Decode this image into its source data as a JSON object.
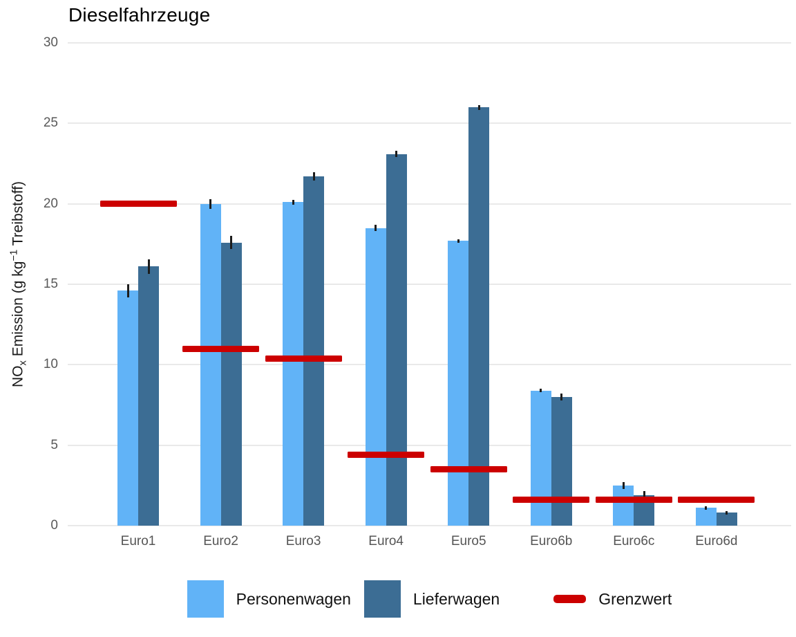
{
  "title": "Dieselfahrzeuge",
  "y_axis": {
    "label_plain": "NOx Emission (g kg−1 Treibstoff)",
    "label_parts": {
      "base1": "NO",
      "sub": "x",
      "base2": " Emission (g kg",
      "sup": "−1",
      "base3": " Treibstoff)"
    }
  },
  "legend": {
    "items": [
      {
        "label": "Personenwagen",
        "color": "#61B3F7",
        "key": "square"
      },
      {
        "label": "Lieferwagen",
        "color": "#3C6D94",
        "key": "square"
      },
      {
        "label": "Grenzwert",
        "color": "#CC0000",
        "key": "line"
      }
    ]
  },
  "colors": {
    "personenwagen": "#61B3F7",
    "lieferwagen": "#3C6D94",
    "grenzwert": "#CC0000",
    "gridline": "#E9E9E9",
    "axis_text": "#595959",
    "error_bar": "#1C1C1C",
    "background": "#FFFFFF"
  },
  "chart_data": {
    "type": "bar",
    "title": "Dieselfahrzeuge",
    "categories": [
      "Euro1",
      "Euro2",
      "Euro3",
      "Euro4",
      "Euro5",
      "Euro6b",
      "Euro6c",
      "Euro6d"
    ],
    "series": [
      {
        "name": "Personenwagen",
        "color": "#61B3F7",
        "values": [
          14.6,
          20.0,
          20.1,
          18.5,
          17.7,
          8.4,
          2.5,
          1.1
        ],
        "errors": [
          0.4,
          0.3,
          0.15,
          0.2,
          0.1,
          0.1,
          0.2,
          0.1
        ]
      },
      {
        "name": "Lieferwagen",
        "color": "#3C6D94",
        "values": [
          16.1,
          17.6,
          21.7,
          23.1,
          26.0,
          8.0,
          1.9,
          0.8
        ],
        "errors": [
          0.45,
          0.4,
          0.25,
          0.2,
          0.15,
          0.2,
          0.25,
          0.1
        ]
      }
    ],
    "limit_line": {
      "name": "Grenzwert",
      "color": "#CC0000",
      "values": [
        20.0,
        11.0,
        10.4,
        4.4,
        3.5,
        1.6,
        1.6,
        1.6
      ]
    },
    "ylabel": "NOx Emission (g kg^-1 Treibstoff)",
    "xlabel": "",
    "ylim": [
      0,
      30
    ],
    "yticks": [
      0,
      5,
      10,
      15,
      20,
      25,
      30
    ],
    "grid": "horizontal-major",
    "legend_position": "bottom",
    "error_bars": true
  }
}
